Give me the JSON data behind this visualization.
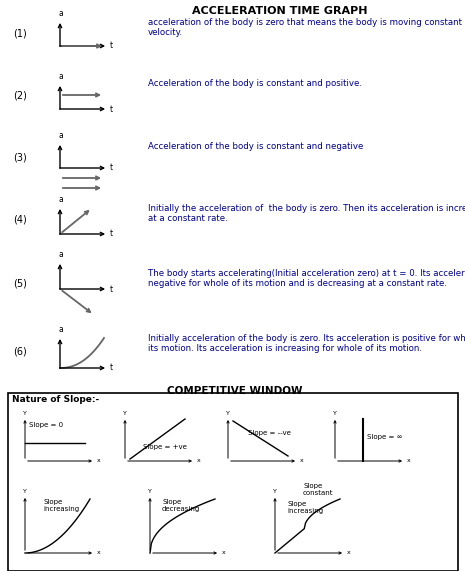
{
  "title": "ACCELERATION TIME GRAPH",
  "background_color": "#ffffff",
  "text_color": "#000000",
  "desc_color": "#00008B",
  "sections": [
    {
      "num": "(1)",
      "desc": "acceleration of the body is zero that means the body is moving constant velocity."
    },
    {
      "num": "(2)",
      "desc": "Acceleration of the body is constant and positive."
    },
    {
      "num": "(3)",
      "desc": "Acceleration of the body is constant and negative"
    },
    {
      "num": "(4)",
      "desc": "Initially the acceleration of  the body is zero. Then its acceleration is increasing\nat a constant rate."
    },
    {
      "num": "(5)",
      "desc": "The body starts accelerating(Initial acceleration zero) at t = 0. Its acceleration is\nnegative for whole of its motion and is decreasing at a constant rate."
    },
    {
      "num": "(6)",
      "desc": "Initially acceleration of the body is zero. Its acceleration is positive for whole of\nits motion. Its acceleration is increasing for whole of its motion."
    }
  ],
  "comp_window_title": "COMPETITIVE WINDOW",
  "nature_of_slope": "Nature of Slope:-"
}
